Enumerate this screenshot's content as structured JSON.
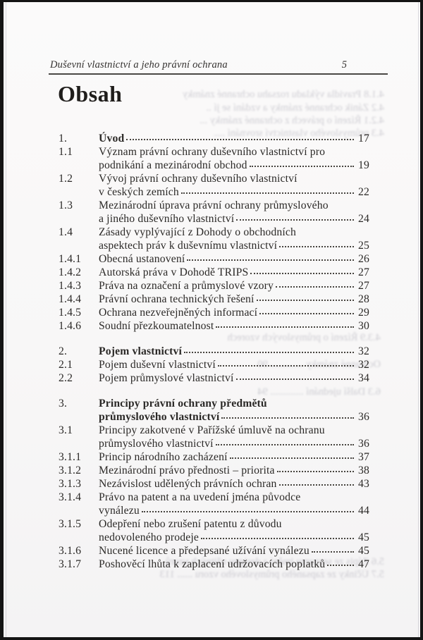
{
  "header": {
    "running_title": "Duševní vlastnictví a jeho právní ochrana",
    "page_number": "5"
  },
  "heading": "Obsah",
  "toc": {
    "sections": [
      {
        "entries": [
          {
            "num": "1.",
            "bold": true,
            "lines": [
              {
                "text": "Úvod",
                "page": "17"
              }
            ]
          },
          {
            "num": "1.1",
            "lines": [
              {
                "text": "Význam právní ochrany duševního vlastnictví pro"
              },
              {
                "text": "podnikání a mezinárodní obchod",
                "page": "19"
              }
            ]
          },
          {
            "num": "1.2",
            "lines": [
              {
                "text": "Vývoj právní ochrany duševního vlastnictví"
              },
              {
                "text": "v českých zemích",
                "page": "22"
              }
            ]
          },
          {
            "num": "1.3",
            "lines": [
              {
                "text": "Mezinárodní úprava právní ochrany průmyslového"
              },
              {
                "text": "a jiného duševního vlastnictví",
                "page": "24"
              }
            ]
          },
          {
            "num": "1.4",
            "lines": [
              {
                "text": "Zásady vyplývající z Dohody o obchodních"
              },
              {
                "text": "aspektech práv k duševnímu vlastnictví",
                "page": "25"
              }
            ]
          },
          {
            "num": "1.4.1",
            "lines": [
              {
                "text": "Obecná ustanovení",
                "page": "26"
              }
            ]
          },
          {
            "num": "1.4.2",
            "lines": [
              {
                "text": "Autorská práva v Dohodě TRIPS",
                "page": "27"
              }
            ]
          },
          {
            "num": "1.4.3",
            "lines": [
              {
                "text": "Práva na označení a průmyslové vzory",
                "page": "27"
              }
            ]
          },
          {
            "num": "1.4.4",
            "lines": [
              {
                "text": "Právní ochrana technických řešení",
                "page": "28"
              }
            ]
          },
          {
            "num": "1.4.5",
            "lines": [
              {
                "text": "Ochrana nezveřejněných informací",
                "page": "29"
              }
            ]
          },
          {
            "num": "1.4.6",
            "lines": [
              {
                "text": "Soudní přezkoumatelnost",
                "page": "30"
              }
            ]
          }
        ]
      },
      {
        "entries": [
          {
            "num": "2.",
            "bold": true,
            "lines": [
              {
                "text": "Pojem vlastnictví",
                "page": "32"
              }
            ]
          },
          {
            "num": "2.1",
            "lines": [
              {
                "text": "Pojem duševní vlastnictví",
                "page": "32"
              }
            ]
          },
          {
            "num": "2.2",
            "lines": [
              {
                "text": "Pojem průmyslové vlastnictví",
                "page": "34"
              }
            ]
          }
        ]
      },
      {
        "entries": [
          {
            "num": "3.",
            "bold": true,
            "lines": [
              {
                "text": "Principy právní ochrany předmětů"
              },
              {
                "text": "průmyslového vlastnictví",
                "page": "36"
              }
            ]
          },
          {
            "num": "3.1",
            "lines": [
              {
                "text": "Principy zakotvené v Pařížské úmluvě na ochranu"
              },
              {
                "text": "průmyslového vlastnictví",
                "page": "36"
              }
            ]
          },
          {
            "num": "3.1.1",
            "lines": [
              {
                "text": "Princip národního zacházení",
                "page": "37"
              }
            ]
          },
          {
            "num": "3.1.2",
            "lines": [
              {
                "text": "Mezinárodní právo přednosti – priorita",
                "page": "38"
              }
            ]
          },
          {
            "num": "3.1.3",
            "lines": [
              {
                "text": "Nezávislost udělených právních ochran",
                "page": "43"
              }
            ]
          },
          {
            "num": "3.1.4",
            "lines": [
              {
                "text": "Právo na patent a na uvedení jména původce"
              },
              {
                "text": "vynálezu",
                "page": "44"
              }
            ]
          },
          {
            "num": "3.1.5",
            "lines": [
              {
                "text": "Odepření nebo zrušení patentu z důvodu"
              },
              {
                "text": "nedovoleného prodeje",
                "page": "45"
              }
            ]
          },
          {
            "num": "3.1.6",
            "lines": [
              {
                "text": "Nucené licence a předepsané užívání vynálezu",
                "page": "45"
              }
            ]
          },
          {
            "num": "3.1.7",
            "lines": [
              {
                "text": "Poshověcí lhůta k zaplacení udržovacích poplatků",
                "page": "47"
              }
            ]
          }
        ]
      }
    ]
  },
  "bleedthrough": {
    "lines": [
      "4.1.8  Pravidla výkladu rozsahu ochranné známky",
      "4.2  Zánik ochranné známky a vzdání se jí ......... 141",
      "4.2.1  Řízení o právech z ochranné známky ..... 145",
      "4.3  průmyslového vlastnictví srovnání ......... 150",
      "4.3.9  Řízení o průmyslových vzorech",
      "Ochranné známky ............. 90",
      "6.3  Další ujednání ............. 94",
      "5.6  Zápis ze seznamu jmění a designu užitných vzorů",
      "5.7  Účinky ze zapsaného průmyslového vzoru ...... 113"
    ]
  }
}
